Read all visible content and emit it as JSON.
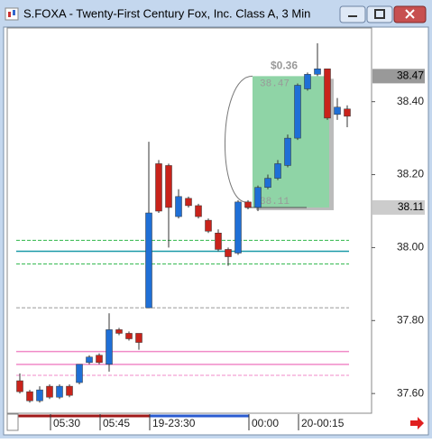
{
  "window": {
    "title": "S.FOXA - Twenty-First Century Fox, Inc. Class A, 3 Min"
  },
  "chart_data": {
    "type": "candlestick",
    "open": [
      37.635,
      37.605,
      37.58,
      37.62,
      37.59,
      37.62,
      37.63,
      37.685,
      37.705,
      37.68,
      37.775,
      37.765,
      37.765,
      37.835,
      38.23,
      38.225,
      38.085,
      38.135,
      38.115,
      38.075,
      38.04,
      37.995,
      37.985,
      38.125,
      38.11,
      38.165,
      38.19,
      38.225,
      38.3,
      38.435,
      38.475,
      38.49,
      38.365,
      38.38
    ],
    "high": [
      37.655,
      37.61,
      37.62,
      37.625,
      37.625,
      37.625,
      37.68,
      37.705,
      37.71,
      37.82,
      37.78,
      37.77,
      37.765,
      38.29,
      38.24,
      38.23,
      38.16,
      38.14,
      38.12,
      38.08,
      38.05,
      38.0,
      38.13,
      38.13,
      38.17,
      38.2,
      38.24,
      38.31,
      38.45,
      38.48,
      38.56,
      38.49,
      38.41,
      38.39
    ],
    "low": [
      37.6,
      37.575,
      37.575,
      37.585,
      37.585,
      37.59,
      37.625,
      37.68,
      37.68,
      37.66,
      37.76,
      37.745,
      37.72,
      37.835,
      38.095,
      38.0,
      38.08,
      38.11,
      38.08,
      38.04,
      37.99,
      37.95,
      37.98,
      38.105,
      38.1,
      38.16,
      38.185,
      38.22,
      38.295,
      38.43,
      38.47,
      38.35,
      38.35,
      38.33
    ],
    "close": [
      37.605,
      37.58,
      37.61,
      37.59,
      37.62,
      37.595,
      37.68,
      37.7,
      37.685,
      37.775,
      37.765,
      37.75,
      37.74,
      38.095,
      38.1,
      38.11,
      38.14,
      38.115,
      38.085,
      38.045,
      37.995,
      37.975,
      38.125,
      38.11,
      38.165,
      38.19,
      38.23,
      38.3,
      38.445,
      38.475,
      38.49,
      38.355,
      38.385,
      38.36
    ],
    "up_color": "#1f6fd6",
    "down_color": "#c9231b",
    "ylim": [
      37.546,
      38.602
    ],
    "yticks": [
      {
        "value": 37.6,
        "label": "37.60"
      },
      {
        "value": 37.8,
        "label": "37.80"
      },
      {
        "value": 38.0,
        "label": "38.00"
      },
      {
        "value": 38.2,
        "label": "38.20"
      },
      {
        "value": 38.4,
        "label": "38.40"
      }
    ],
    "xtick_labels": [
      "05:30",
      "05:45",
      "19-23:30",
      "00:00",
      "20-00:15"
    ],
    "price_markers": [
      38.47,
      38.11
    ],
    "levels": [
      {
        "value": 38.02,
        "color": "#2eb84a",
        "dash": true
      },
      {
        "value": 37.99,
        "color": "#1a9aa8",
        "dash": false
      },
      {
        "value": 37.955,
        "color": "#2eb84a",
        "dash": true
      },
      {
        "value": 37.835,
        "color": "#999999",
        "dash": true
      },
      {
        "value": 37.715,
        "color": "#f08ac8",
        "dash": false
      },
      {
        "value": 37.68,
        "color": "#f08ac8",
        "dash": false
      },
      {
        "value": 37.65,
        "color": "#f08ac8",
        "dash": true
      }
    ],
    "box": {
      "high": 38.47,
      "low": 38.11,
      "change_label": "$0.36",
      "color": "#8fd4a6"
    }
  }
}
